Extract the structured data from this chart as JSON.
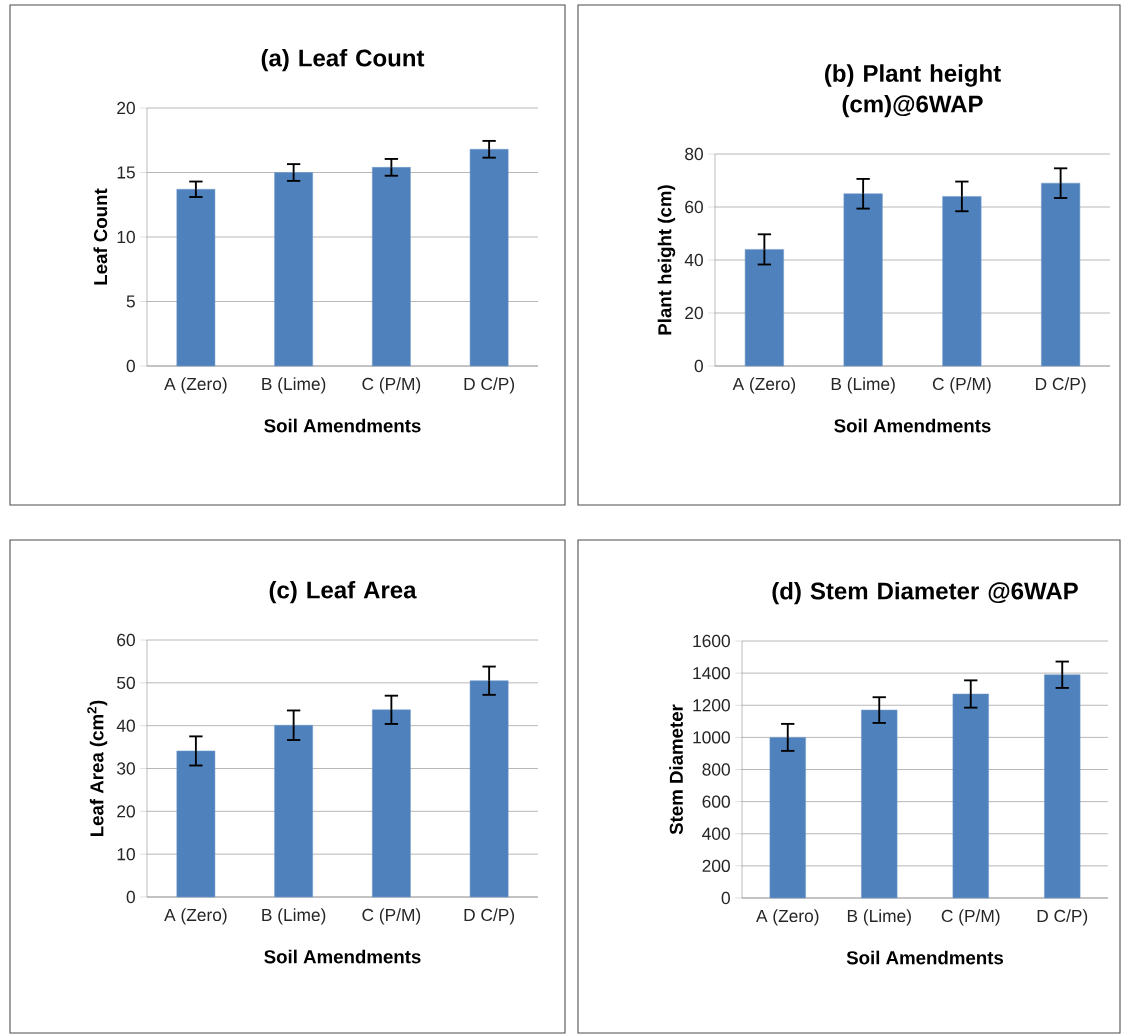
{
  "chart_data": [
    {
      "type": "bar",
      "title": "(a) Leaf Count",
      "xlabel": "Soil Amendments",
      "ylabel": "Leaf Count",
      "categories": [
        "A (Zero)",
        "B (Lime)",
        "C (P/M)",
        "D C/P)"
      ],
      "values": [
        13.7,
        15.0,
        15.4,
        16.8
      ],
      "errors": [
        0.6,
        0.65,
        0.65,
        0.65
      ],
      "color": "#4f81bd",
      "ylim": [
        0,
        20
      ],
      "yticks": [
        0,
        5,
        10,
        15,
        20
      ],
      "grid": "y"
    },
    {
      "type": "bar",
      "title": "(b) Plant height (cm)@6WAP",
      "xlabel": "Soil Amendments",
      "ylabel": "Plant height (cm)",
      "categories": [
        "A (Zero)",
        "B (Lime)",
        "C (P/M)",
        "D C/P)"
      ],
      "values": [
        44,
        65,
        64,
        69
      ],
      "errors": [
        5.7,
        5.6,
        5.6,
        5.6
      ],
      "color": "#4f81bd",
      "ylim": [
        0,
        80
      ],
      "yticks": [
        0,
        20,
        40,
        60,
        80
      ],
      "grid": "y"
    },
    {
      "type": "bar",
      "title": "(c) Leaf Area",
      "xlabel": "Soil Amendments",
      "ylabel": "Leaf Area (cm$^{2}$)",
      "categories": [
        "A (Zero)",
        "B (Lime)",
        "C (P/M)",
        "D C/P)"
      ],
      "values": [
        34.1,
        40.1,
        43.7,
        50.5
      ],
      "errors": [
        3.4,
        3.45,
        3.3,
        3.3
      ],
      "color": "#4f81bd",
      "ylim": [
        0,
        60
      ],
      "yticks": [
        0,
        10,
        20,
        30,
        40,
        50,
        60
      ],
      "grid": "y"
    },
    {
      "type": "bar",
      "title": "(d) Stem Diameter @6WAP",
      "xlabel": "Soil Amendments",
      "ylabel": "Stem Diameter",
      "categories": [
        "A (Zero)",
        "B (Lime)",
        "C (P/M)",
        "D C/P)"
      ],
      "values": [
        1000,
        1170,
        1270,
        1390
      ],
      "errors": [
        84,
        80,
        85,
        82
      ],
      "color": "#4f81bd",
      "ylim": [
        0,
        1600
      ],
      "yticks": [
        0,
        200,
        400,
        600,
        800,
        1000,
        1200,
        1400,
        1600
      ],
      "grid": "y"
    }
  ]
}
